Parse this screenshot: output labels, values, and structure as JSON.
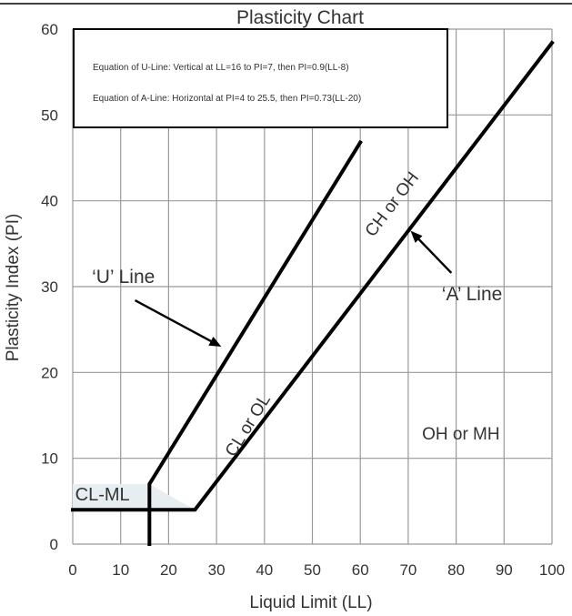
{
  "chart_data": {
    "type": "line",
    "title": "Plasticity Chart",
    "xlabel": "Liquid Limit (LL)",
    "ylabel": "Plasticity Index (PI)",
    "xlim": [
      0,
      100
    ],
    "ylim": [
      0,
      60
    ],
    "grid": true,
    "x_ticks": [
      0,
      10,
      20,
      30,
      40,
      50,
      60,
      70,
      80,
      90,
      100
    ],
    "y_ticks": [
      0,
      10,
      20,
      30,
      40,
      50,
      60
    ],
    "x_tick_labels": [
      "0",
      "10",
      "20",
      "30",
      "40",
      "50",
      "60",
      "70",
      "80",
      "90",
      "100"
    ],
    "y_tick_labels": [
      "0",
      "10",
      "20",
      "30",
      "40",
      "50",
      "60"
    ],
    "equations_box": {
      "u_line": "Equation of U-Line: Vertical at LL=16 to PI=7, then PI=0.9(LL-8)",
      "a_line": "Equation of A-Line: Horizontal at PI=4 to 25.5, then PI=0.73(LL-20)"
    },
    "series": [
      {
        "id": "u_line",
        "name": "‘U’ Line",
        "points": [
          [
            16,
            0
          ],
          [
            16,
            7
          ],
          [
            60,
            46.8
          ]
        ]
      },
      {
        "id": "a_line",
        "name": "‘A’ Line",
        "points": [
          [
            0,
            4
          ],
          [
            25.5,
            4
          ],
          [
            100,
            58.4
          ]
        ]
      }
    ],
    "regions": [
      {
        "id": "cl_ml",
        "label": "CL-ML",
        "polygon": [
          [
            0,
            4
          ],
          [
            0,
            7
          ],
          [
            16,
            7
          ],
          [
            25.5,
            4
          ]
        ]
      }
    ],
    "annotations": [
      {
        "id": "u_label",
        "text": "‘U’ Line",
        "x": 4,
        "y": 30.4,
        "anchor": "start",
        "rotate": false
      },
      {
        "id": "a_label",
        "text": "‘A’ Line",
        "x": 77,
        "y": 28.4,
        "anchor": "start",
        "rotate": false
      },
      {
        "id": "cl_ol",
        "text": "CL or OL",
        "x": 37.5,
        "y": 13.5,
        "anchor": "middle",
        "rotate": true,
        "rotate_slope": 0.9
      },
      {
        "id": "ch_oh",
        "text": "CH or OH",
        "x": 67.5,
        "y": 39.2,
        "anchor": "middle",
        "rotate": true,
        "rotate_slope": 0.73
      },
      {
        "id": "oh_mh",
        "text": "OH or MH",
        "x": 81,
        "y": 12.2,
        "anchor": "middle",
        "rotate": false
      },
      {
        "id": "cl_ml_label",
        "text": "CL-ML",
        "x": 0.5,
        "y": 5.1,
        "anchor": "start",
        "rotate": false
      }
    ],
    "arrows": [
      {
        "id": "u_arrow",
        "from": [
          13,
          28.4
        ],
        "to": [
          31,
          23
        ]
      },
      {
        "id": "a_arrow",
        "from": [
          79,
          31.6
        ],
        "to": [
          70.5,
          36.5
        ]
      }
    ]
  }
}
